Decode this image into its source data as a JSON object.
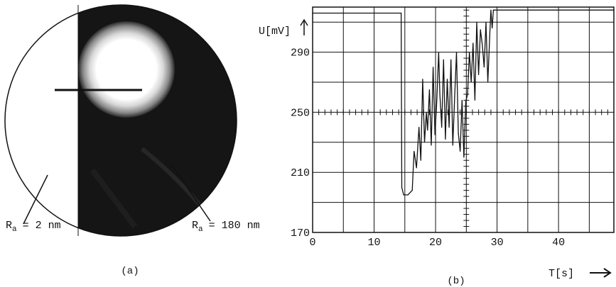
{
  "panel_a": {
    "caption": "(a)",
    "left_label": {
      "symbol": "R",
      "sub": "a",
      "value": "= 2 nm"
    },
    "right_label": {
      "symbol": "R",
      "sub": "a",
      "value": "= 180 nm"
    }
  },
  "panel_b": {
    "caption": "(b)",
    "ylabel": "U[mV]",
    "xlabel": "T[s]"
  },
  "chart_data": {
    "type": "line",
    "xlabel": "T[s]",
    "ylabel": "U[mV]",
    "xlim": [
      0,
      49
    ],
    "ylim": [
      170,
      320
    ],
    "x_ticks": [
      0,
      10,
      20,
      30,
      40
    ],
    "y_ticks": [
      170,
      210,
      250,
      290
    ],
    "grid": true,
    "series": [
      {
        "x": [
          0,
          14.4,
          14.5,
          14.8,
          15.5,
          16.2,
          16.5,
          16.9,
          17.3,
          17.6,
          17.9,
          18.2,
          18.5,
          18.7,
          19.0,
          19.3,
          19.6,
          19.9,
          20.2,
          20.5,
          20.7,
          21.0,
          21.3,
          21.6,
          21.9,
          22.2,
          22.5,
          22.8,
          23.1,
          23.4,
          23.7,
          24.0,
          24.3,
          24.6,
          24.9,
          25.2,
          25.5,
          25.8,
          26.1,
          26.4,
          26.7,
          27.0,
          27.3,
          27.6,
          27.9,
          28.2,
          28.5,
          28.8,
          29.0,
          29.2,
          29.4,
          49
        ],
        "y": [
          316,
          316,
          200,
          195,
          195,
          198,
          224,
          213,
          240,
          218,
          272,
          230,
          250,
          238,
          265,
          228,
          280,
          235,
          258,
          290,
          262,
          240,
          285,
          232,
          272,
          240,
          285,
          228,
          260,
          290,
          236,
          224,
          258,
          220,
          257,
          262,
          290,
          270,
          296,
          258,
          310,
          275,
          305,
          295,
          280,
          310,
          270,
          300,
          318,
          306,
          318,
          318
        ]
      }
    ]
  }
}
